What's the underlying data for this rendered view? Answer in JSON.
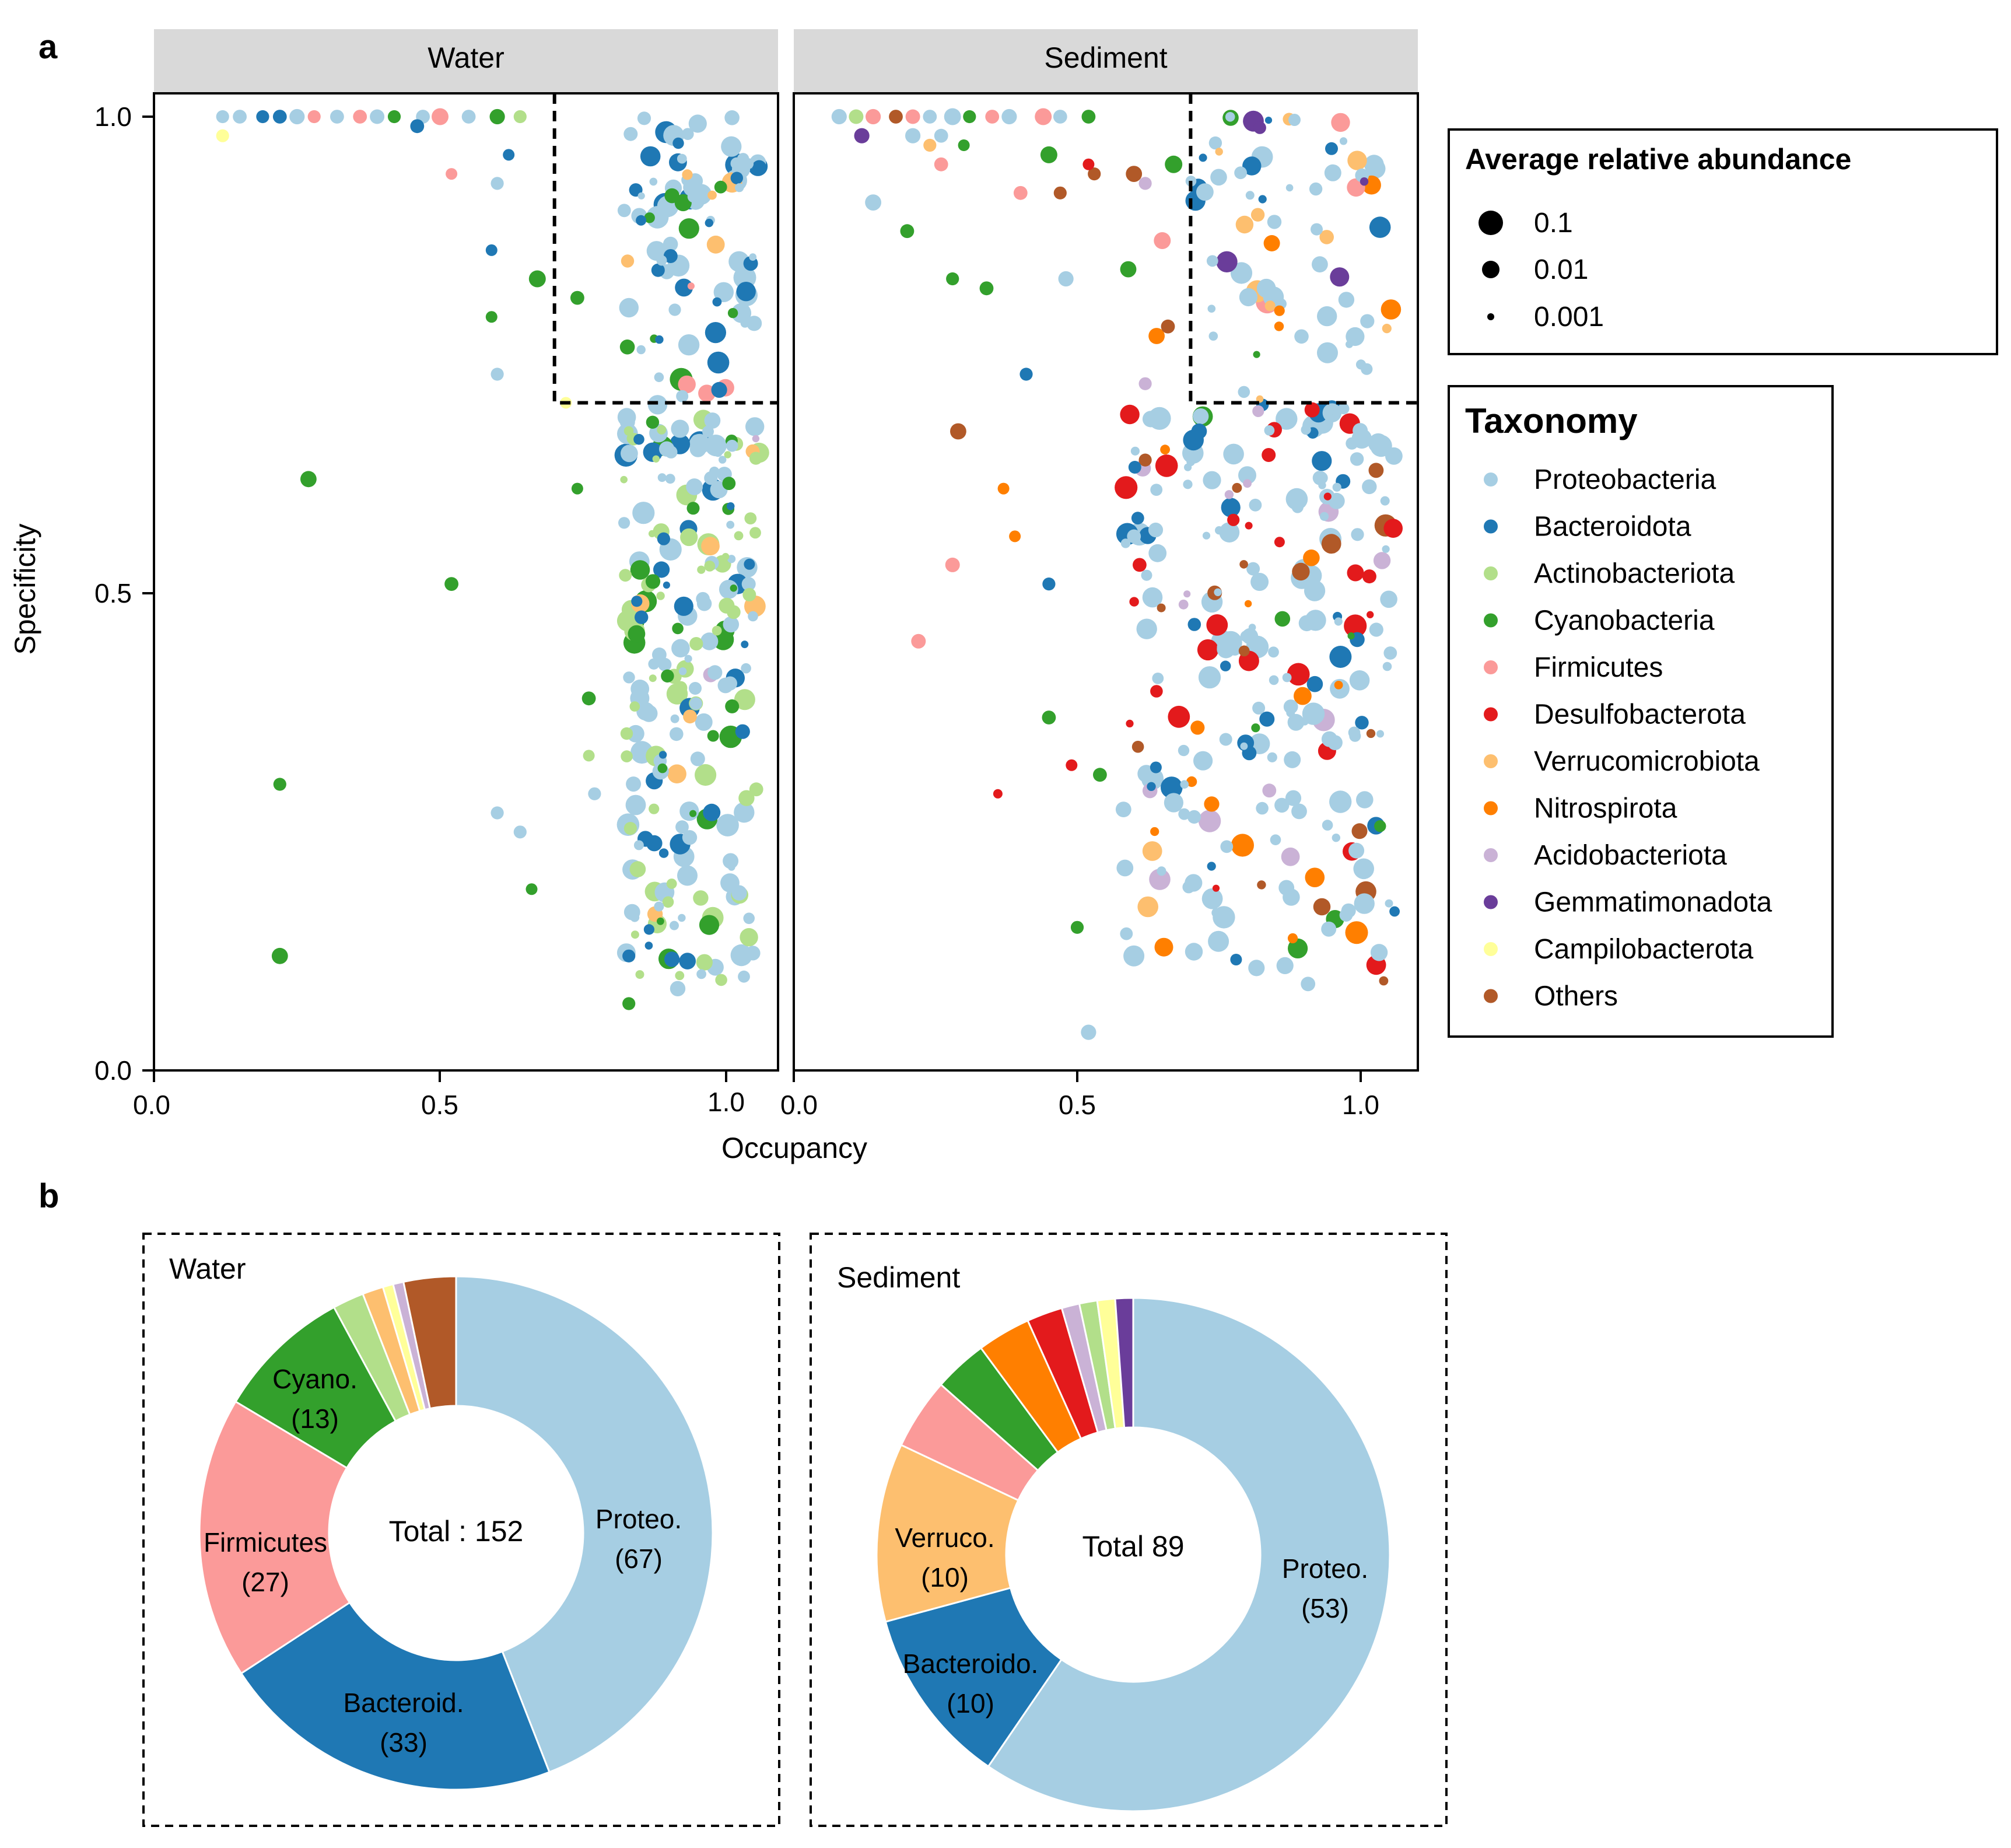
{
  "colors": {
    "Proteobacteria": "#a6cee3",
    "Bacteroidota": "#1f78b4",
    "Actinobacteriota": "#b2df8a",
    "Cyanobacteria": "#33a02c",
    "Firmicutes": "#fb9a99",
    "Desulfobacterota": "#e31a1c",
    "Verrucomicrobiota": "#fdbf6f",
    "Nitrospirota": "#ff7f00",
    "Acidobacteriota": "#cab2d6",
    "Gemmatimonadota": "#6a3d9a",
    "Campilobacterota": "#ffff99",
    "Others": "#b15928"
  },
  "panel_a": {
    "label": "a",
    "xlabel": "Occupancy",
    "ylabel": "Specificity",
    "x_ticks": [
      "0.0",
      "0.5",
      "1.0"
    ],
    "y_ticks": [
      "0.0",
      "0.5",
      "1.0"
    ],
    "facets": [
      "Water",
      "Sediment"
    ],
    "threshold_note": "dashed box: Occupancy ≥ 0.7 and Specificity ≥ 0.7"
  },
  "legend_size": {
    "title": "Average relative abundance",
    "items": [
      "0.1",
      "0.01",
      "0.001"
    ]
  },
  "legend_taxonomy": {
    "title": "Taxonomy",
    "items": [
      "Proteobacteria",
      "Bacteroidota",
      "Actinobacteriota",
      "Cyanobacteria",
      "Firmicutes",
      "Desulfobacterota",
      "Verrucomicrobiota",
      "Nitrospirota",
      "Acidobacteriota",
      "Gemmatimonadota",
      "Campilobacterota",
      "Others"
    ]
  },
  "panel_b": {
    "label": "b",
    "water": {
      "title": "Water",
      "center": "Total : 152"
    },
    "sediment": {
      "title": "Sediment",
      "center": "Total 89"
    }
  },
  "chart_data": [
    {
      "type": "scatter",
      "title": "Water",
      "xlabel": "Occupancy",
      "ylabel": "Specificity",
      "xlim": [
        0,
        1.1
      ],
      "ylim": [
        0,
        1.0
      ],
      "threshold": {
        "x": 0.7,
        "y": 0.7
      },
      "points": [
        {
          "x": 0.12,
          "y": 1.0,
          "t": "Proteobacteria",
          "a": 0.003
        },
        {
          "x": 0.15,
          "y": 1.0,
          "t": "Proteobacteria",
          "a": 0.004
        },
        {
          "x": 0.19,
          "y": 1.0,
          "t": "Bacteroidota",
          "a": 0.003
        },
        {
          "x": 0.22,
          "y": 1.0,
          "t": "Bacteroidota",
          "a": 0.004
        },
        {
          "x": 0.25,
          "y": 1.0,
          "t": "Proteobacteria",
          "a": 0.006
        },
        {
          "x": 0.28,
          "y": 1.0,
          "t": "Firmicutes",
          "a": 0.003
        },
        {
          "x": 0.32,
          "y": 1.0,
          "t": "Proteobacteria",
          "a": 0.004
        },
        {
          "x": 0.36,
          "y": 1.0,
          "t": "Firmicutes",
          "a": 0.004
        },
        {
          "x": 0.39,
          "y": 1.0,
          "t": "Proteobacteria",
          "a": 0.005
        },
        {
          "x": 0.42,
          "y": 1.0,
          "t": "Cyanobacteria",
          "a": 0.003
        },
        {
          "x": 0.47,
          "y": 1.0,
          "t": "Proteobacteria",
          "a": 0.004
        },
        {
          "x": 0.5,
          "y": 1.0,
          "t": "Firmicutes",
          "a": 0.01
        },
        {
          "x": 0.55,
          "y": 1.0,
          "t": "Proteobacteria",
          "a": 0.004
        },
        {
          "x": 0.6,
          "y": 1.0,
          "t": "Cyanobacteria",
          "a": 0.006
        },
        {
          "x": 0.64,
          "y": 1.0,
          "t": "Actinobacteriota",
          "a": 0.003
        },
        {
          "x": 0.12,
          "y": 0.98,
          "t": "Campilobacterota",
          "a": 0.003
        },
        {
          "x": 0.46,
          "y": 0.99,
          "t": "Bacteroidota",
          "a": 0.004
        },
        {
          "x": 0.52,
          "y": 0.94,
          "t": "Firmicutes",
          "a": 0.002
        },
        {
          "x": 0.6,
          "y": 0.93,
          "t": "Proteobacteria",
          "a": 0.003
        },
        {
          "x": 0.62,
          "y": 0.96,
          "t": "Bacteroidota",
          "a": 0.002
        },
        {
          "x": 0.59,
          "y": 0.86,
          "t": "Bacteroidota",
          "a": 0.002
        },
        {
          "x": 0.67,
          "y": 0.83,
          "t": "Cyanobacteria",
          "a": 0.01
        },
        {
          "x": 0.59,
          "y": 0.79,
          "t": "Cyanobacteria",
          "a": 0.002
        },
        {
          "x": 0.6,
          "y": 0.73,
          "t": "Proteobacteria",
          "a": 0.003
        },
        {
          "x": 0.27,
          "y": 0.62,
          "t": "Cyanobacteria",
          "a": 0.008
        },
        {
          "x": 0.52,
          "y": 0.51,
          "t": "Cyanobacteria",
          "a": 0.004
        },
        {
          "x": 0.22,
          "y": 0.3,
          "t": "Cyanobacteria",
          "a": 0.003
        },
        {
          "x": 0.6,
          "y": 0.27,
          "t": "Proteobacteria",
          "a": 0.003
        },
        {
          "x": 0.64,
          "y": 0.25,
          "t": "Proteobacteria",
          "a": 0.003
        },
        {
          "x": 0.66,
          "y": 0.19,
          "t": "Cyanobacteria",
          "a": 0.002
        },
        {
          "x": 0.22,
          "y": 0.12,
          "t": "Cyanobacteria",
          "a": 0.008
        },
        {
          "x": 0.74,
          "y": 0.81,
          "t": "Cyanobacteria",
          "a": 0.004
        },
        {
          "x": 0.72,
          "y": 0.7,
          "t": "Campilobacterota",
          "a": 0.002
        },
        {
          "x": 0.74,
          "y": 0.61,
          "t": "Cyanobacteria",
          "a": 0.002
        },
        {
          "x": 0.76,
          "y": 0.39,
          "t": "Cyanobacteria",
          "a": 0.004
        },
        {
          "x": 0.76,
          "y": 0.33,
          "t": "Actinobacteriota",
          "a": 0.002
        },
        {
          "x": 0.77,
          "y": 0.29,
          "t": "Proteobacteria",
          "a": 0.003
        },
        {
          "x": 0.83,
          "y": 0.07,
          "t": "Cyanobacteria",
          "a": 0.003
        },
        {
          "x": 0.83,
          "y": 0.12,
          "t": "Bacteroidota",
          "a": 0.003
        }
      ],
      "dense_clusters": [
        {
          "x_range": [
            0.82,
            1.06
          ],
          "y_range": [
            0.7,
            1.0
          ],
          "n": 90,
          "mix": {
            "Proteobacteria": 0.55,
            "Bacteroidota": 0.2,
            "Cyanobacteria": 0.1,
            "Firmicutes": 0.08,
            "Others": 0.04,
            "Verrucomicrobiota": 0.03
          }
        },
        {
          "x_range": [
            0.82,
            1.06
          ],
          "y_range": [
            0.08,
            0.7
          ],
          "n": 230,
          "mix": {
            "Proteobacteria": 0.45,
            "Actinobacteriota": 0.25,
            "Bacteroidota": 0.17,
            "Cyanobacteria": 0.09,
            "Verrucomicrobiota": 0.02,
            "Acidobacteriota": 0.02
          }
        }
      ]
    },
    {
      "type": "scatter",
      "title": "Sediment",
      "xlabel": "Occupancy",
      "ylabel": "Specificity",
      "xlim": [
        0,
        1.1
      ],
      "ylim": [
        0,
        1.0
      ],
      "threshold": {
        "x": 0.7,
        "y": 0.7
      },
      "points": [
        {
          "x": 0.08,
          "y": 1.0,
          "t": "Proteobacteria",
          "a": 0.006
        },
        {
          "x": 0.11,
          "y": 1.0,
          "t": "Actinobacteriota",
          "a": 0.005
        },
        {
          "x": 0.14,
          "y": 1.0,
          "t": "Firmicutes",
          "a": 0.006
        },
        {
          "x": 0.18,
          "y": 1.0,
          "t": "Others",
          "a": 0.004
        },
        {
          "x": 0.21,
          "y": 1.0,
          "t": "Firmicutes",
          "a": 0.005
        },
        {
          "x": 0.24,
          "y": 1.0,
          "t": "Proteobacteria",
          "a": 0.004
        },
        {
          "x": 0.28,
          "y": 1.0,
          "t": "Proteobacteria",
          "a": 0.01
        },
        {
          "x": 0.31,
          "y": 1.0,
          "t": "Cyanobacteria",
          "a": 0.003
        },
        {
          "x": 0.35,
          "y": 1.0,
          "t": "Firmicutes",
          "a": 0.004
        },
        {
          "x": 0.38,
          "y": 1.0,
          "t": "Proteobacteria",
          "a": 0.006
        },
        {
          "x": 0.44,
          "y": 1.0,
          "t": "Firmicutes",
          "a": 0.01
        },
        {
          "x": 0.47,
          "y": 1.0,
          "t": "Proteobacteria",
          "a": 0.004
        },
        {
          "x": 0.52,
          "y": 1.0,
          "t": "Cyanobacteria",
          "a": 0.004
        },
        {
          "x": 0.12,
          "y": 0.98,
          "t": "Gemmatimonadota",
          "a": 0.006
        },
        {
          "x": 0.21,
          "y": 0.98,
          "t": "Proteobacteria",
          "a": 0.006
        },
        {
          "x": 0.24,
          "y": 0.97,
          "t": "Verrucomicrobiota",
          "a": 0.003
        },
        {
          "x": 0.26,
          "y": 0.98,
          "t": "Proteobacteria",
          "a": 0.004
        },
        {
          "x": 0.3,
          "y": 0.97,
          "t": "Cyanobacteria",
          "a": 0.002
        },
        {
          "x": 0.14,
          "y": 0.91,
          "t": "Proteobacteria",
          "a": 0.008
        },
        {
          "x": 0.2,
          "y": 0.88,
          "t": "Cyanobacteria",
          "a": 0.004
        },
        {
          "x": 0.26,
          "y": 0.95,
          "t": "Firmicutes",
          "a": 0.004
        },
        {
          "x": 0.4,
          "y": 0.92,
          "t": "Firmicutes",
          "a": 0.004
        },
        {
          "x": 0.45,
          "y": 0.96,
          "t": "Cyanobacteria",
          "a": 0.01
        },
        {
          "x": 0.47,
          "y": 0.92,
          "t": "Others",
          "a": 0.003
        },
        {
          "x": 0.52,
          "y": 0.95,
          "t": "Desulfobacterota",
          "a": 0.002
        },
        {
          "x": 0.53,
          "y": 0.94,
          "t": "Others",
          "a": 0.003
        },
        {
          "x": 0.6,
          "y": 0.94,
          "t": "Others",
          "a": 0.008
        },
        {
          "x": 0.62,
          "y": 0.93,
          "t": "Acidobacteriota",
          "a": 0.003
        },
        {
          "x": 0.67,
          "y": 0.95,
          "t": "Cyanobacteria",
          "a": 0.012
        },
        {
          "x": 0.65,
          "y": 0.87,
          "t": "Firmicutes",
          "a": 0.01
        },
        {
          "x": 0.28,
          "y": 0.83,
          "t": "Cyanobacteria",
          "a": 0.003
        },
        {
          "x": 0.34,
          "y": 0.82,
          "t": "Cyanobacteria",
          "a": 0.004
        },
        {
          "x": 0.48,
          "y": 0.83,
          "t": "Proteobacteria",
          "a": 0.006
        },
        {
          "x": 0.59,
          "y": 0.84,
          "t": "Cyanobacteria",
          "a": 0.008
        },
        {
          "x": 0.64,
          "y": 0.77,
          "t": "Nitrospirota",
          "a": 0.008
        },
        {
          "x": 0.66,
          "y": 0.78,
          "t": "Others",
          "a": 0.004
        },
        {
          "x": 0.62,
          "y": 0.72,
          "t": "Acidobacteriota",
          "a": 0.003
        },
        {
          "x": 0.41,
          "y": 0.73,
          "t": "Bacteroidota",
          "a": 0.003
        },
        {
          "x": 0.29,
          "y": 0.67,
          "t": "Others",
          "a": 0.008
        },
        {
          "x": 0.37,
          "y": 0.61,
          "t": "Nitrospirota",
          "a": 0.002
        },
        {
          "x": 0.39,
          "y": 0.56,
          "t": "Nitrospirota",
          "a": 0.002
        },
        {
          "x": 0.28,
          "y": 0.53,
          "t": "Firmicutes",
          "a": 0.005
        },
        {
          "x": 0.45,
          "y": 0.51,
          "t": "Bacteroidota",
          "a": 0.003
        },
        {
          "x": 0.22,
          "y": 0.45,
          "t": "Firmicutes",
          "a": 0.005
        },
        {
          "x": 0.45,
          "y": 0.37,
          "t": "Cyanobacteria",
          "a": 0.004
        },
        {
          "x": 0.36,
          "y": 0.29,
          "t": "Desulfobacterota",
          "a": 0.001
        },
        {
          "x": 0.49,
          "y": 0.32,
          "t": "Desulfobacterota",
          "a": 0.002
        },
        {
          "x": 0.54,
          "y": 0.31,
          "t": "Cyanobacteria",
          "a": 0.004
        },
        {
          "x": 0.5,
          "y": 0.15,
          "t": "Cyanobacteria",
          "a": 0.003
        },
        {
          "x": 0.52,
          "y": 0.04,
          "t": "Proteobacteria",
          "a": 0.006
        },
        {
          "x": 0.6,
          "y": 0.56,
          "t": "Proteobacteria",
          "a": 0.004
        },
        {
          "x": 0.61,
          "y": 0.53,
          "t": "Desulfobacterota",
          "a": 0.004
        },
        {
          "x": 0.62,
          "y": 0.64,
          "t": "Others",
          "a": 0.003
        }
      ],
      "dense_clusters": [
        {
          "x_range": [
            0.7,
            1.06
          ],
          "y_range": [
            0.7,
            1.0
          ],
          "n": 70,
          "mix": {
            "Proteobacteria": 0.62,
            "Verrucomicrobiota": 0.1,
            "Bacteroidota": 0.08,
            "Nitrospirota": 0.06,
            "Cyanobacteria": 0.06,
            "Gemmatimonadota": 0.04,
            "Firmicutes": 0.04
          }
        },
        {
          "x_range": [
            0.58,
            1.06
          ],
          "y_range": [
            0.09,
            0.7
          ],
          "n": 260,
          "mix": {
            "Proteobacteria": 0.58,
            "Bacteroidota": 0.14,
            "Desulfobacterota": 0.1,
            "Others": 0.05,
            "Nitrospirota": 0.04,
            "Cyanobacteria": 0.04,
            "Acidobacteriota": 0.03,
            "Verrucomicrobiota": 0.02
          }
        }
      ]
    },
    {
      "type": "pie",
      "title": "Water",
      "center_label": "Total : 152",
      "slices": [
        {
          "name": "Proteobacteria",
          "short": "Proteo.",
          "value": 67,
          "show": true
        },
        {
          "name": "Bacteroidota",
          "short": "Bacteroid.",
          "value": 33,
          "show": true
        },
        {
          "name": "Firmicutes",
          "short": "Firmicutes",
          "value": 27,
          "show": true
        },
        {
          "name": "Cyanobacteria",
          "short": "Cyano.",
          "value": 13,
          "show": true
        },
        {
          "name": "Actinobacteriota",
          "short": "",
          "value": 3,
          "show": false
        },
        {
          "name": "Verrucomicrobiota",
          "short": "",
          "value": 2,
          "show": false
        },
        {
          "name": "Campilobacterota",
          "short": "",
          "value": 1,
          "show": false
        },
        {
          "name": "Acidobacteriota",
          "short": "",
          "value": 1,
          "show": false
        },
        {
          "name": "Others",
          "short": "",
          "value": 5,
          "show": false
        }
      ]
    },
    {
      "type": "pie",
      "title": "Sediment",
      "center_label": "Total 89",
      "slices": [
        {
          "name": "Proteobacteria",
          "short": "Proteo.",
          "value": 53,
          "show": true
        },
        {
          "name": "Bacteroidota",
          "short": "Bacteroido.",
          "value": 10,
          "show": true
        },
        {
          "name": "Verrucomicrobiota",
          "short": "Verruco.",
          "value": 10,
          "show": true
        },
        {
          "name": "Firmicutes",
          "short": "",
          "value": 4,
          "show": false
        },
        {
          "name": "Cyanobacteria",
          "short": "",
          "value": 3,
          "show": false
        },
        {
          "name": "Nitrospirota",
          "short": "",
          "value": 3,
          "show": false
        },
        {
          "name": "Desulfobacterota",
          "short": "",
          "value": 2,
          "show": false
        },
        {
          "name": "Acidobacteriota",
          "short": "",
          "value": 1,
          "show": false
        },
        {
          "name": "Actinobacteriota",
          "short": "",
          "value": 1,
          "show": false
        },
        {
          "name": "Campilobacterota",
          "short": "",
          "value": 1,
          "show": false
        },
        {
          "name": "Gemmatimonadota",
          "short": "",
          "value": 1,
          "show": false
        }
      ]
    }
  ]
}
